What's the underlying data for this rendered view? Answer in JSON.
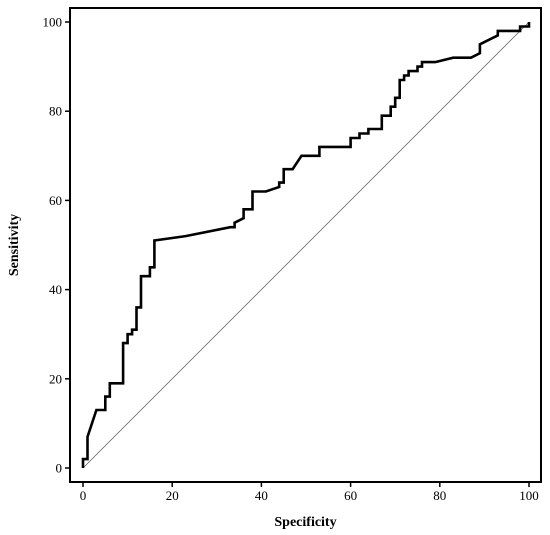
{
  "chart_data": {
    "type": "line",
    "title": "",
    "xlabel": "Specificity",
    "ylabel": "Sensitivity",
    "xlim": [
      0,
      100
    ],
    "ylim": [
      0,
      100
    ],
    "xticks": [
      0,
      20,
      40,
      60,
      80,
      100
    ],
    "yticks": [
      0,
      20,
      40,
      60,
      80,
      100
    ],
    "grid": false,
    "legend": "none",
    "colors": {
      "curve": "#000000",
      "diagonal": "#555555",
      "frame": "#000000"
    },
    "series": [
      {
        "style": "step",
        "x": [
          0,
          0,
          1,
          1,
          3,
          5,
          5,
          6,
          6,
          9,
          9,
          10,
          10,
          11,
          11,
          12,
          12,
          13,
          13,
          15,
          15,
          16,
          16,
          23,
          23,
          33,
          34,
          34,
          36,
          36,
          38,
          38,
          41,
          44,
          44,
          45,
          45,
          47,
          49,
          49,
          53,
          53,
          60,
          60,
          62,
          62,
          64,
          64,
          67,
          67,
          69,
          69,
          70,
          70,
          71,
          71,
          72,
          72,
          73,
          73,
          75,
          75,
          76,
          76,
          79,
          79,
          83,
          83,
          87,
          89,
          89,
          91,
          93,
          93,
          98,
          98,
          100,
          100
        ],
        "y": [
          0,
          2,
          2,
          7,
          13,
          13,
          16,
          16,
          19,
          19,
          28,
          28,
          30,
          30,
          31,
          31,
          36,
          36,
          43,
          43,
          45,
          45,
          51,
          52,
          52,
          54,
          54,
          55,
          56,
          58,
          58,
          62,
          62,
          63,
          64,
          64,
          67,
          67,
          70,
          70,
          70,
          72,
          72,
          74,
          74,
          75,
          75,
          76,
          76,
          79,
          79,
          81,
          81,
          83,
          83,
          87,
          87,
          88,
          88,
          89,
          89,
          90,
          90,
          91,
          91,
          91,
          92,
          92,
          92,
          93,
          95,
          96,
          97,
          98,
          98,
          99,
          99,
          100
        ]
      },
      {
        "style": "reference",
        "x": [
          0,
          100
        ],
        "y": [
          0,
          100
        ]
      }
    ]
  }
}
